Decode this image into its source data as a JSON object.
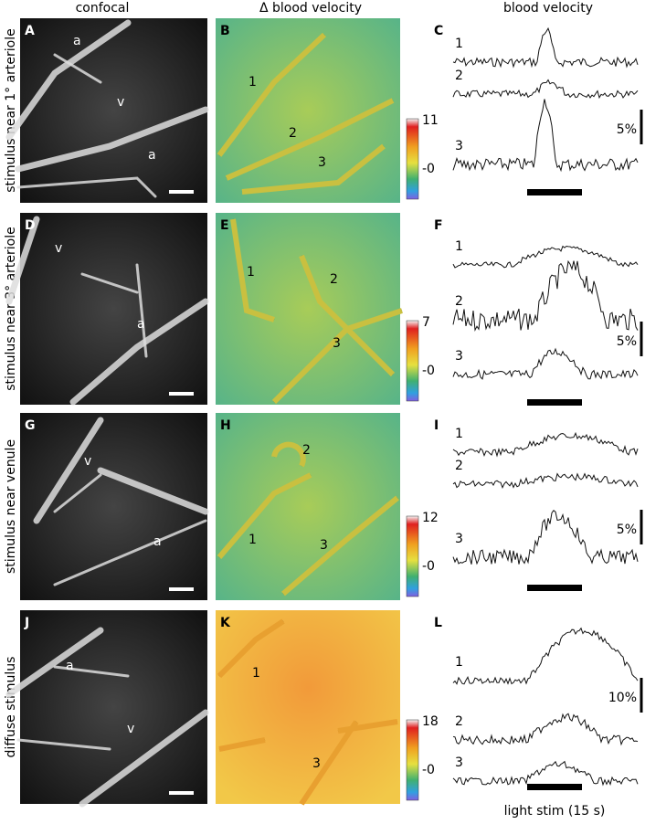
{
  "columns": [
    "confocal",
    "Δ blood velocity",
    "blood velocity"
  ],
  "rows": [
    {
      "label": "stimulus near 1° arteriole",
      "confocal": {
        "panel": "A",
        "labels": [
          "a",
          "v",
          "a"
        ]
      },
      "map": {
        "panel": "B",
        "vessels": [
          "1",
          "2",
          "3"
        ],
        "colorbar": [
          "11",
          "-0"
        ]
      },
      "traces": {
        "panel": "C",
        "names": [
          "1",
          "2",
          "3"
        ],
        "scale": "5%"
      }
    },
    {
      "label": "stimulus near 3° arteriole",
      "confocal": {
        "panel": "D",
        "labels": [
          "v",
          "a"
        ]
      },
      "map": {
        "panel": "E",
        "vessels": [
          "1",
          "2",
          "3"
        ],
        "colorbar": [
          "7",
          "-0"
        ]
      },
      "traces": {
        "panel": "F",
        "names": [
          "1",
          "2",
          "3"
        ],
        "scale": "5%"
      }
    },
    {
      "label": "stimulus near venule",
      "confocal": {
        "panel": "G",
        "labels": [
          "v",
          "a"
        ]
      },
      "map": {
        "panel": "H",
        "vessels": [
          "1",
          "2",
          "3"
        ],
        "colorbar": [
          "12",
          "-0"
        ]
      },
      "traces": {
        "panel": "I",
        "names": [
          "1",
          "2",
          "3"
        ],
        "scale": "5%"
      }
    },
    {
      "label": "diffuse stimulus",
      "confocal": {
        "panel": "J",
        "labels": [
          "a",
          "v"
        ]
      },
      "map": {
        "panel": "K",
        "vessels": [
          "1",
          "3"
        ],
        "colorbar": [
          "18",
          "-0"
        ]
      },
      "traces": {
        "panel": "L",
        "names": [
          "1",
          "2",
          "3"
        ],
        "scale": "10%"
      }
    }
  ],
  "stim_label": "light stim (15 s)"
}
